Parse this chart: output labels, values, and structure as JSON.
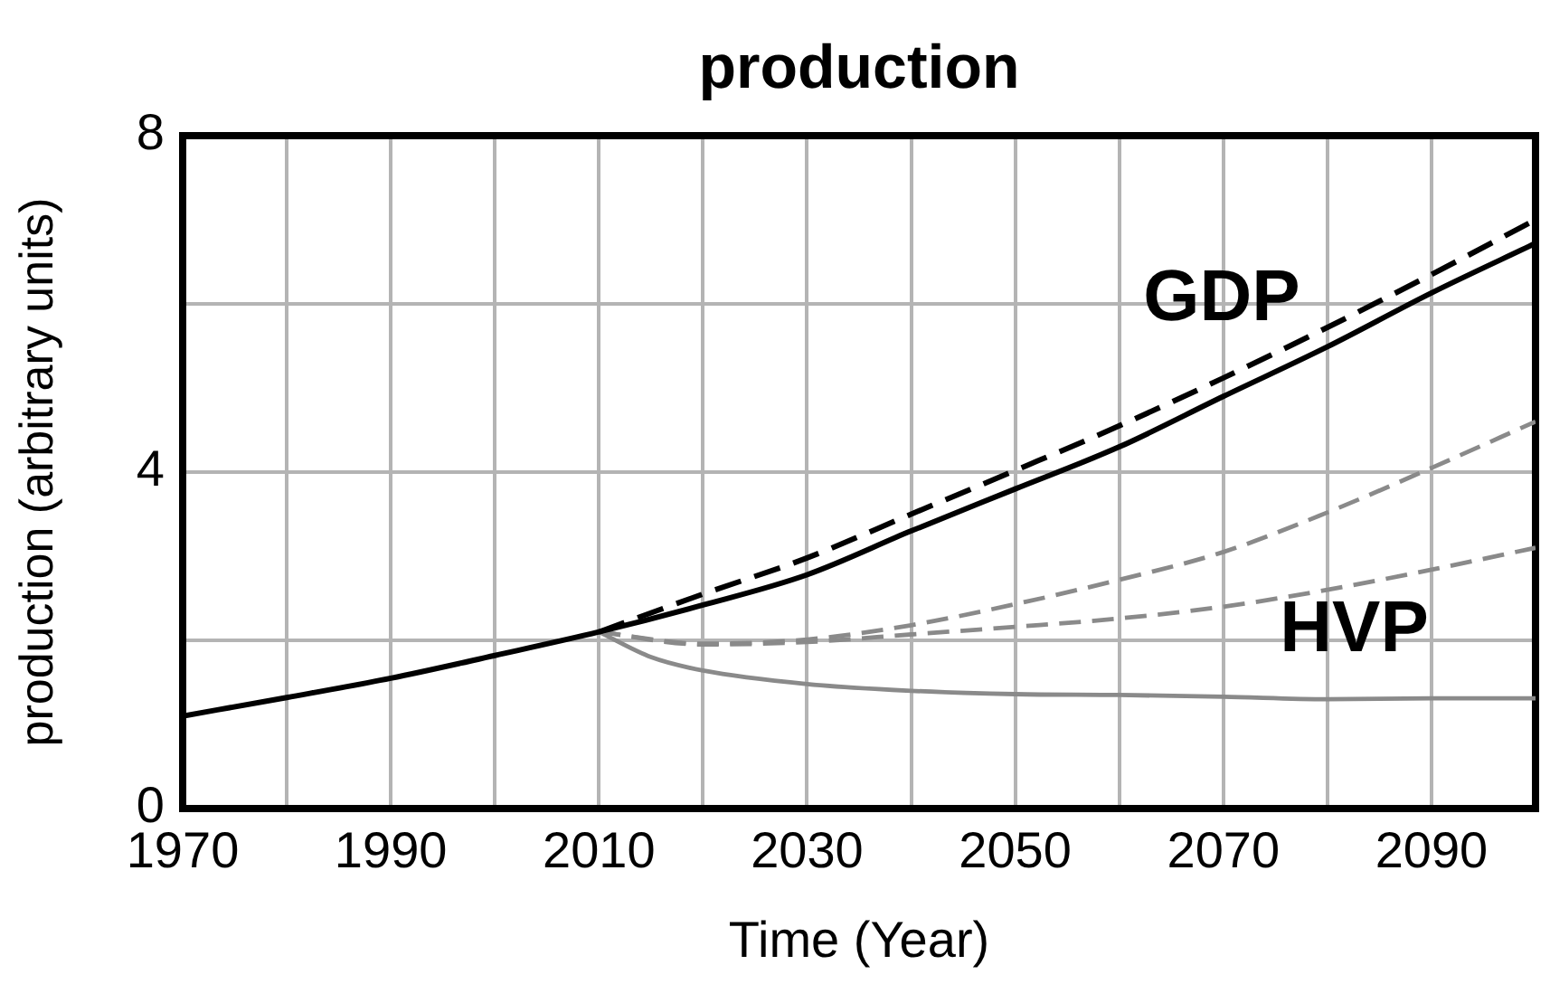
{
  "chart_data": {
    "type": "line",
    "title": "production",
    "xlabel": "Time (Year)",
    "ylabel": "production (arbitrary units)",
    "x": [
      1970,
      1980,
      1990,
      2000,
      2010,
      2020,
      2030,
      2040,
      2050,
      2060,
      2070,
      2080,
      2090,
      2100
    ],
    "series": [
      {
        "color": "#000000",
        "line_style": "solid",
        "values": [
          1.1,
          1.32,
          1.55,
          1.82,
          2.1,
          2.42,
          2.78,
          3.3,
          3.8,
          4.3,
          4.9,
          5.49,
          6.13,
          6.72
        ]
      },
      {
        "color": "#000000",
        "line_style": "dashed",
        "x": [
          2010,
          2020,
          2030,
          2040,
          2050,
          2060,
          2070,
          2080,
          2090,
          2100
        ],
        "values": [
          2.1,
          2.55,
          2.98,
          3.5,
          4.02,
          4.55,
          5.12,
          5.72,
          6.35,
          7.0
        ]
      },
      {
        "color": "#8a8a8a",
        "line_style": "dashed",
        "x": [
          2010,
          2020,
          2030,
          2040,
          2050,
          2060,
          2070,
          2080,
          2090,
          2100
        ],
        "values": [
          2.1,
          1.96,
          2.01,
          2.18,
          2.43,
          2.72,
          3.05,
          3.52,
          4.05,
          4.6
        ]
      },
      {
        "color": "#8a8a8a",
        "line_style": "dashed",
        "x": [
          2010,
          2020,
          2030,
          2040,
          2050,
          2060,
          2070,
          2080,
          2090,
          2100
        ],
        "values": [
          2.1,
          1.95,
          1.98,
          2.07,
          2.16,
          2.26,
          2.4,
          2.6,
          2.84,
          3.1
        ]
      },
      {
        "color": "#8a8a8a",
        "line_style": "solid",
        "x": [
          2010,
          2015,
          2020,
          2030,
          2040,
          2050,
          2060,
          2070,
          2080,
          2090,
          2100
        ],
        "values": [
          2.1,
          1.8,
          1.64,
          1.48,
          1.4,
          1.36,
          1.35,
          1.33,
          1.3,
          1.31,
          1.31
        ]
      }
    ],
    "xlim": [
      1970,
      2100
    ],
    "xticks": [
      1970,
      {
        "value": 1980,
        "label": null
      },
      1990,
      {
        "value": 2000,
        "label": null
      },
      2010,
      {
        "value": 2020,
        "label": null
      },
      2030,
      {
        "value": 2040,
        "label": null
      },
      2050,
      {
        "value": 2060,
        "label": null
      },
      2070,
      {
        "value": 2080,
        "label": null
      },
      2090,
      {
        "value": 2100,
        "label": null
      }
    ],
    "ylim": [
      0,
      8
    ],
    "yticks": [
      0,
      {
        "value": 2,
        "label": null
      },
      4,
      {
        "value": 6,
        "label": null
      },
      8
    ],
    "annotations": [
      "GDP",
      "HVP"
    ],
    "grid": true,
    "legend": false,
    "marker": "none"
  }
}
